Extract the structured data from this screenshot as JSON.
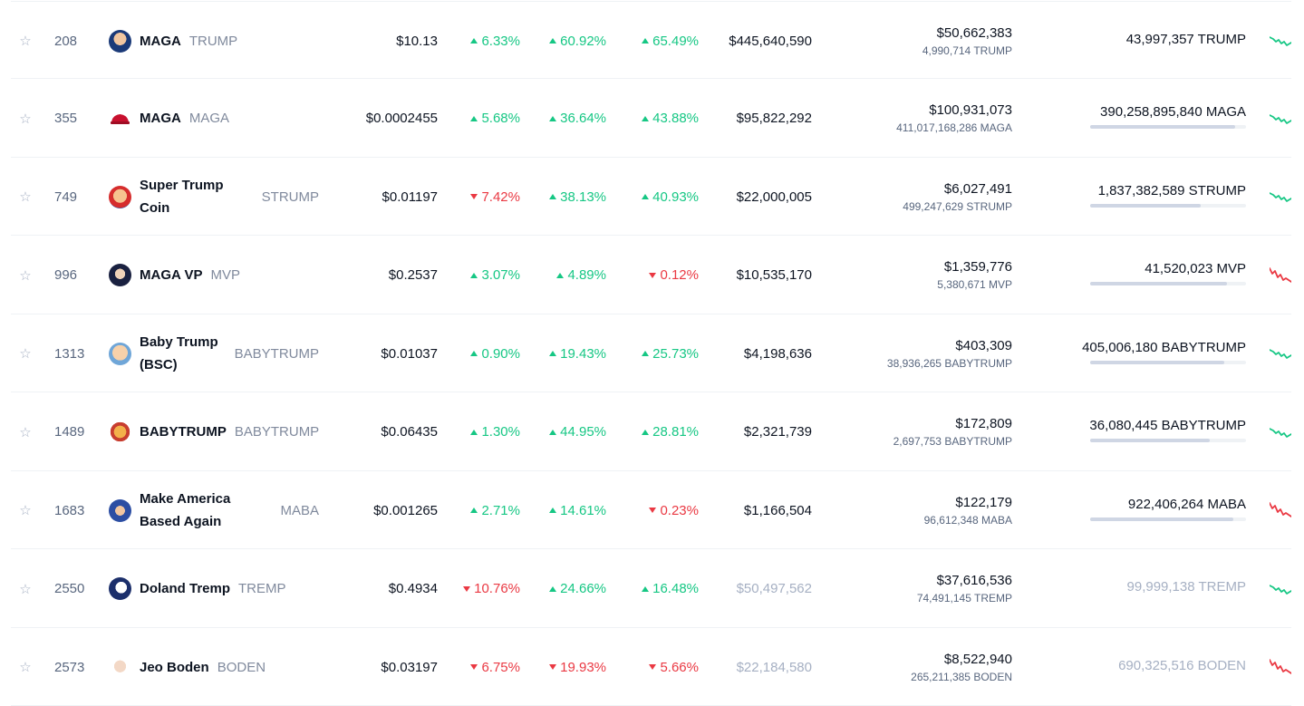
{
  "rows": [
    {
      "rank": "208",
      "name": "MAGA",
      "symbol": "TRUMP",
      "price": "$10.13",
      "h1": {
        "dir": "up",
        "value": "6.33%"
      },
      "h24": {
        "dir": "up",
        "value": "60.92%"
      },
      "d7": {
        "dir": "up",
        "value": "65.49%"
      },
      "market_cap": "$445,640,590",
      "volume_usd": "$50,662,383",
      "volume_coin": "4,990,714 TRUMP",
      "supply": "43,997,357 TRUMP",
      "supply_fraction": null,
      "trend": "up",
      "icon": "trump-portrait-icon"
    },
    {
      "rank": "355",
      "name": "MAGA",
      "symbol": "MAGA",
      "price": "$0.0002455",
      "h1": {
        "dir": "up",
        "value": "5.68%"
      },
      "h24": {
        "dir": "up",
        "value": "36.64%"
      },
      "d7": {
        "dir": "up",
        "value": "43.88%"
      },
      "market_cap": "$95,822,292",
      "volume_usd": "$100,931,073",
      "volume_coin": "411,017,168,286 MAGA",
      "supply": "390,258,895,840 MAGA",
      "supply_fraction": 0.93,
      "trend": "up",
      "icon": "red-hat-icon"
    },
    {
      "rank": "749",
      "name": "Super Trump Coin",
      "symbol": "STRUMP",
      "price": "$0.01197",
      "h1": {
        "dir": "down",
        "value": "7.42%"
      },
      "h24": {
        "dir": "up",
        "value": "38.13%"
      },
      "d7": {
        "dir": "up",
        "value": "40.93%"
      },
      "market_cap": "$22,000,005",
      "volume_usd": "$6,027,491",
      "volume_coin": "499,247,629 STRUMP",
      "supply": "1,837,382,589 STRUMP",
      "supply_fraction": 0.71,
      "trend": "up",
      "icon": "super-trump-icon"
    },
    {
      "rank": "996",
      "name": "MAGA VP",
      "symbol": "MVP",
      "price": "$0.2537",
      "h1": {
        "dir": "up",
        "value": "3.07%"
      },
      "h24": {
        "dir": "up",
        "value": "4.89%"
      },
      "d7": {
        "dir": "down",
        "value": "0.12%"
      },
      "market_cap": "$10,535,170",
      "volume_usd": "$1,359,776",
      "volume_coin": "5,380,671 MVP",
      "supply": "41,520,023 MVP",
      "supply_fraction": 0.88,
      "trend": "down",
      "icon": "maga-vp-icon"
    },
    {
      "rank": "1313",
      "name": "Baby Trump (BSC)",
      "symbol": "BABYTRUMP",
      "price": "$0.01037",
      "h1": {
        "dir": "up",
        "value": "0.90%"
      },
      "h24": {
        "dir": "up",
        "value": "19.43%"
      },
      "d7": {
        "dir": "up",
        "value": "25.73%"
      },
      "market_cap": "$4,198,636",
      "volume_usd": "$403,309",
      "volume_coin": "38,936,265 BABYTRUMP",
      "supply": "405,006,180 BABYTRUMP",
      "supply_fraction": 0.86,
      "trend": "up",
      "icon": "baby-trump-icon"
    },
    {
      "rank": "1489",
      "name": "BABYTRUMP",
      "symbol": "BABYTRUMP",
      "price": "$0.06435",
      "h1": {
        "dir": "up",
        "value": "1.30%"
      },
      "h24": {
        "dir": "up",
        "value": "44.95%"
      },
      "d7": {
        "dir": "up",
        "value": "28.81%"
      },
      "market_cap": "$2,321,739",
      "volume_usd": "$172,809",
      "volume_coin": "2,697,753 BABYTRUMP",
      "supply": "36,080,445 BABYTRUMP",
      "supply_fraction": 0.77,
      "trend": "up",
      "icon": "babytrump-cartoon-icon"
    },
    {
      "rank": "1683",
      "name": "Make America Based Again",
      "symbol": "MABA",
      "price": "$0.001265",
      "h1": {
        "dir": "up",
        "value": "2.71%"
      },
      "h24": {
        "dir": "up",
        "value": "14.61%"
      },
      "d7": {
        "dir": "down",
        "value": "0.23%"
      },
      "market_cap": "$1,166,504",
      "volume_usd": "$122,179",
      "volume_coin": "96,612,348 MABA",
      "supply": "922,406,264 MABA",
      "supply_fraction": 0.92,
      "trend": "down",
      "icon": "maba-seal-icon"
    },
    {
      "rank": "2550",
      "name": "Doland Tremp",
      "symbol": "TREMP",
      "price": "$0.4934",
      "h1": {
        "dir": "down",
        "value": "10.76%"
      },
      "h24": {
        "dir": "up",
        "value": "24.66%"
      },
      "d7": {
        "dir": "up",
        "value": "16.48%"
      },
      "market_cap": "$50,497,562",
      "market_cap_muted": true,
      "volume_usd": "$37,616,536",
      "volume_coin": "74,491,145 TREMP",
      "supply": "99,999,138 TREMP",
      "supply_muted": true,
      "supply_fraction": null,
      "trend": "up",
      "icon": "doland-tremp-icon"
    },
    {
      "rank": "2573",
      "name": "Jeo Boden",
      "symbol": "BODEN",
      "price": "$0.03197",
      "h1": {
        "dir": "down",
        "value": "6.75%"
      },
      "h24": {
        "dir": "down",
        "value": "19.93%"
      },
      "d7": {
        "dir": "down",
        "value": "5.66%"
      },
      "market_cap": "$22,184,580",
      "market_cap_muted": true,
      "volume_usd": "$8,522,940",
      "volume_coin": "265,211,385 BODEN",
      "supply": "690,325,516 BODEN",
      "supply_muted": true,
      "supply_fraction": null,
      "trend": "down",
      "icon": "jeo-boden-icon"
    }
  ],
  "colors": {
    "up": "#16c784",
    "down": "#ea3943",
    "muted": "#a6b0c3",
    "bar": "#cfd6e4",
    "bar_track": "#eff2f5"
  },
  "star_icon": "star-outline-icon"
}
